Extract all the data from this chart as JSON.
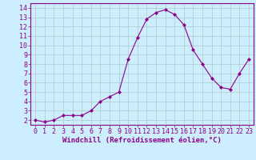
{
  "x": [
    0,
    1,
    2,
    3,
    4,
    5,
    6,
    7,
    8,
    9,
    10,
    11,
    12,
    13,
    14,
    15,
    16,
    17,
    18,
    19,
    20,
    21,
    22,
    23
  ],
  "y": [
    2.0,
    1.8,
    2.0,
    2.5,
    2.5,
    2.5,
    3.0,
    4.0,
    4.5,
    5.0,
    8.5,
    10.8,
    12.8,
    13.5,
    13.8,
    13.3,
    12.2,
    9.5,
    8.0,
    6.5,
    5.5,
    5.3,
    7.0,
    8.5
  ],
  "line_color": "#8B008B",
  "marker": "D",
  "marker_size": 2.0,
  "bg_color": "#cceeff",
  "grid_color": "#b0c8c8",
  "xlabel": "Windchill (Refroidissement éolien,°C)",
  "xlim": [
    -0.5,
    23.5
  ],
  "ylim": [
    1.5,
    14.5
  ],
  "yticks": [
    2,
    3,
    4,
    5,
    6,
    7,
    8,
    9,
    10,
    11,
    12,
    13,
    14
  ],
  "xticks": [
    0,
    1,
    2,
    3,
    4,
    5,
    6,
    7,
    8,
    9,
    10,
    11,
    12,
    13,
    14,
    15,
    16,
    17,
    18,
    19,
    20,
    21,
    22,
    23
  ],
  "tick_color": "#8B008B",
  "label_color": "#8B008B",
  "tick_fontsize": 6.0,
  "xlabel_fontsize": 6.5
}
